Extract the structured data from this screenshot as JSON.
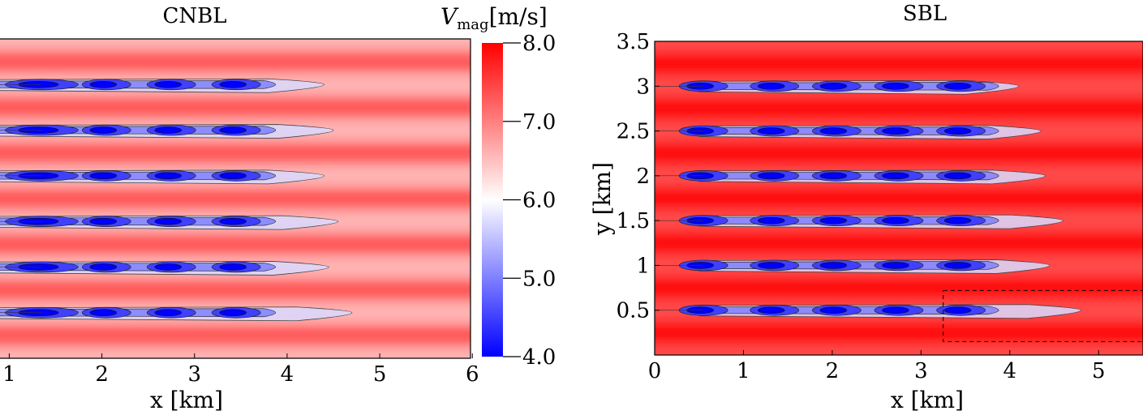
{
  "chart_data": [
    {
      "type": "heatmap",
      "title": "CNBL",
      "xlabel": "x [km]",
      "ylabel": "",
      "xlim": [
        0.9,
        5.98
      ],
      "ylim": [
        0.0,
        3.5
      ],
      "x_ticks": [
        "1",
        "2",
        "3",
        "4",
        "5",
        "6"
      ],
      "y_ticks": [],
      "field": "wind speed magnitude",
      "background_speed": 6.9,
      "stripe_speed_range": [
        6.6,
        7.3
      ],
      "turbine_rows_y": [
        0.5,
        1.0,
        1.5,
        2.0,
        2.5,
        3.0
      ],
      "turbine_columns_x": [
        1.35,
        2.05,
        2.75,
        3.45
      ],
      "wake_end_x": [
        4.7,
        4.45,
        4.55,
        4.4,
        4.5,
        4.4
      ],
      "wake_min_speed": 4.0
    },
    {
      "type": "heatmap",
      "title": "SBL",
      "xlabel": "x [km]",
      "ylabel": "y [km]",
      "xlim": [
        0.0,
        5.5
      ],
      "ylim": [
        0.0,
        3.5
      ],
      "x_ticks": [
        "0",
        "1",
        "2",
        "3",
        "4",
        "5"
      ],
      "y_ticks": [
        "0.5",
        "1",
        "1.5",
        "2",
        "2.5",
        "3",
        "3.5"
      ],
      "field": "wind speed magnitude",
      "background_speed": 7.7,
      "stripe_speed_range": [
        7.4,
        7.9
      ],
      "turbine_rows_y": [
        0.5,
        1.0,
        1.5,
        2.0,
        2.5,
        3.0
      ],
      "turbine_columns_x": [
        0.55,
        1.35,
        2.05,
        2.75,
        3.45
      ],
      "wake_end_x": [
        4.8,
        4.45,
        4.6,
        4.4,
        4.35,
        4.1
      ],
      "wake_min_speed": 4.0,
      "dashed_box_x": [
        3.25,
        5.5
      ],
      "dashed_box_y": [
        0.15,
        0.72
      ]
    }
  ],
  "colorbar": {
    "label_symbol": "V",
    "label_subscript": "mag",
    "label_unit": "[m/s]",
    "min": 4.0,
    "max": 8.0,
    "mid": 6.0,
    "ticks": [
      "4.0",
      "5.0",
      "6.0",
      "7.0",
      "8.0"
    ],
    "colors": {
      "low": "#0000ff",
      "mid": "#ffffff",
      "high": "#ff0000"
    }
  }
}
